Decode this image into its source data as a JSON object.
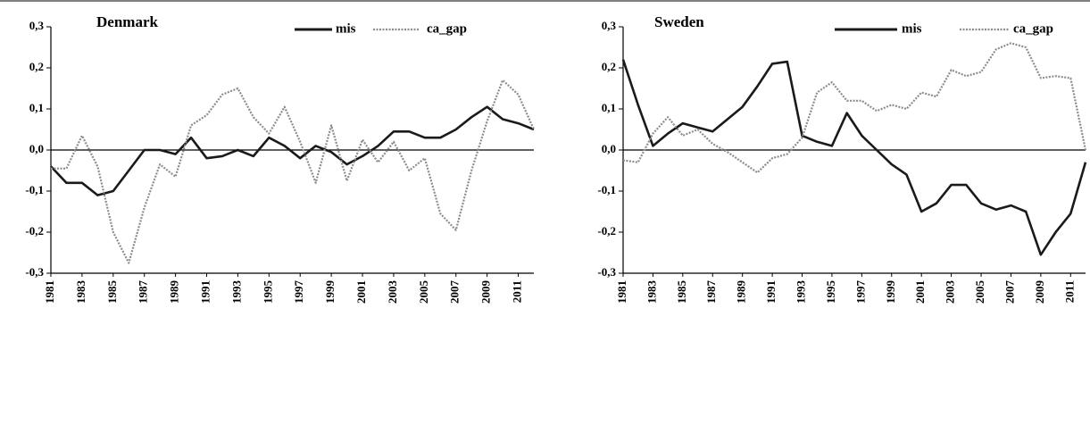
{
  "chart_data": [
    {
      "type": "line",
      "title": "Denmark",
      "x": [
        1981,
        1982,
        1983,
        1984,
        1985,
        1986,
        1987,
        1988,
        1989,
        1990,
        1991,
        1992,
        1993,
        1994,
        1995,
        1996,
        1997,
        1998,
        1999,
        2000,
        2001,
        2002,
        2003,
        2004,
        2005,
        2006,
        2007,
        2008,
        2009,
        2010,
        2011,
        2012
      ],
      "xlim": [
        1981,
        2012
      ],
      "xticks": [
        1981,
        1983,
        1985,
        1987,
        1989,
        1991,
        1993,
        1995,
        1997,
        1999,
        2001,
        2003,
        2005,
        2007,
        2009,
        2011
      ],
      "ylim": [
        -0.3,
        0.3
      ],
      "yticks": [
        {
          "value": 0.3,
          "label": "0,3"
        },
        {
          "value": 0.2,
          "label": "0,2"
        },
        {
          "value": 0.1,
          "label": "0,1"
        },
        {
          "value": 0,
          "label": "0,0"
        },
        {
          "value": -0.1,
          "label": "-0,1"
        },
        {
          "value": -0.2,
          "label": "-0,2"
        },
        {
          "value": -0.3,
          "label": "-0,3"
        }
      ],
      "series": [
        {
          "name": "mis",
          "color": "#1a1a1a",
          "values": [
            -0.04,
            -0.08,
            -0.08,
            -0.11,
            -0.1,
            -0.05,
            0.0,
            0.0,
            -0.01,
            0.03,
            -0.02,
            -0.015,
            0.0,
            -0.015,
            0.03,
            0.01,
            -0.02,
            0.01,
            -0.005,
            -0.035,
            -0.015,
            0.01,
            0.045,
            0.045,
            0.03,
            0.03,
            0.05,
            0.08,
            0.105,
            0.075,
            0.065,
            0.05
          ]
        },
        {
          "name": "ca_gap",
          "color": "#8c8c8c",
          "values": [
            -0.045,
            -0.045,
            0.035,
            -0.04,
            -0.2,
            -0.275,
            -0.14,
            -0.035,
            -0.065,
            0.06,
            0.085,
            0.135,
            0.15,
            0.08,
            0.04,
            0.105,
            0.02,
            -0.08,
            0.06,
            -0.075,
            0.025,
            -0.03,
            0.02,
            -0.05,
            -0.02,
            -0.155,
            -0.195,
            -0.05,
            0.07,
            0.17,
            0.135,
            0.05
          ]
        }
      ]
    },
    {
      "type": "line",
      "title": "Sweden",
      "x": [
        1981,
        1982,
        1983,
        1984,
        1985,
        1986,
        1987,
        1988,
        1989,
        1990,
        1991,
        1992,
        1993,
        1994,
        1995,
        1996,
        1997,
        1998,
        1999,
        2000,
        2001,
        2002,
        2003,
        2004,
        2005,
        2006,
        2007,
        2008,
        2009,
        2010,
        2011,
        2012
      ],
      "xlim": [
        1981,
        2012
      ],
      "xticks": [
        1981,
        1983,
        1985,
        1987,
        1989,
        1991,
        1993,
        1995,
        1997,
        1999,
        2001,
        2003,
        2005,
        2007,
        2009,
        2011
      ],
      "ylim": [
        -0.3,
        0.3
      ],
      "yticks": [
        {
          "value": 0.3,
          "label": "0,3"
        },
        {
          "value": 0.2,
          "label": "0,2"
        },
        {
          "value": 0.1,
          "label": "0,1"
        },
        {
          "value": 0,
          "label": "0,0"
        },
        {
          "value": -0.1,
          "label": "-0,1"
        },
        {
          "value": -0.2,
          "label": "-0,2"
        },
        {
          "value": -0.3,
          "label": "-0,3"
        }
      ],
      "series": [
        {
          "name": "mis",
          "color": "#1a1a1a",
          "values": [
            0.22,
            0.11,
            0.01,
            0.04,
            0.065,
            0.055,
            0.045,
            0.075,
            0.105,
            0.155,
            0.21,
            0.215,
            0.035,
            0.02,
            0.01,
            0.09,
            0.035,
            0.0,
            -0.035,
            -0.06,
            -0.15,
            -0.13,
            -0.085,
            -0.085,
            -0.13,
            -0.145,
            -0.135,
            -0.15,
            -0.255,
            -0.2,
            -0.155,
            -0.03
          ]
        },
        {
          "name": "ca_gap",
          "color": "#8c8c8c",
          "values": [
            -0.025,
            -0.03,
            0.04,
            0.08,
            0.035,
            0.05,
            0.015,
            -0.005,
            -0.03,
            -0.055,
            -0.02,
            -0.01,
            0.03,
            0.14,
            0.165,
            0.12,
            0.12,
            0.095,
            0.11,
            0.1,
            0.14,
            0.13,
            0.195,
            0.18,
            0.19,
            0.245,
            0.26,
            0.25,
            0.175,
            0.18,
            0.175,
            0.0
          ]
        }
      ]
    }
  ]
}
